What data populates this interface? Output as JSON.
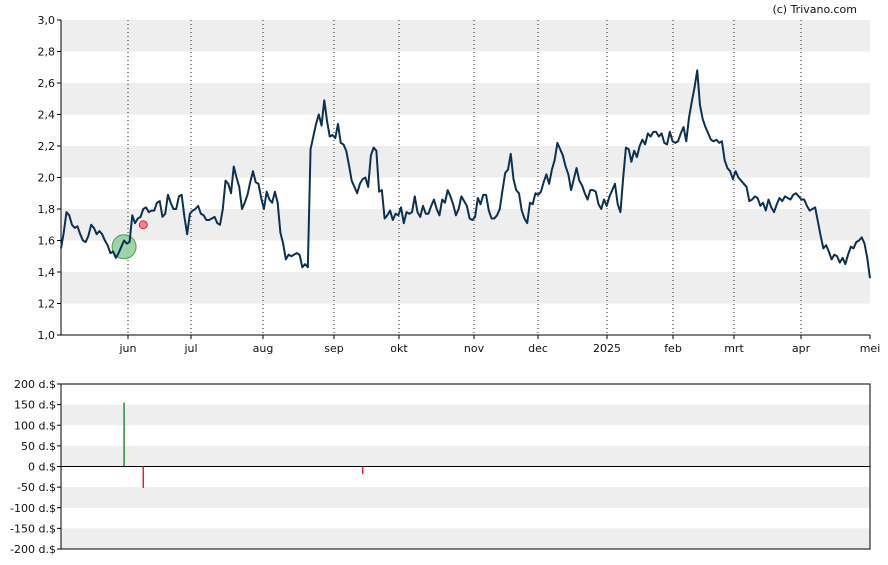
{
  "credit": "(c) Trivano.com",
  "colors": {
    "price_line": "#0d3050",
    "band": "#eeeeee",
    "axis": "#000000",
    "buy": "#2e8b3a",
    "sell": "#e0203a",
    "buy_marker_fill": "#8fcc99",
    "sell_marker_fill": "#f2858f"
  },
  "chart_data": [
    {
      "type": "line",
      "ylim": [
        1.0,
        3.0
      ],
      "y_ticks": [
        "1,0",
        "1,2",
        "1,4",
        "1,6",
        "1,8",
        "2,0",
        "2,2",
        "2,4",
        "2,6",
        "2,8",
        "3,0"
      ],
      "x_tick_labels": [
        "jun",
        "jul",
        "aug",
        "sep",
        "okt",
        "nov",
        "dec",
        "2025",
        "feb",
        "mrt",
        "apr",
        "mei"
      ],
      "grid": "alternating horizontal bands, dotted vertical lines at month starts",
      "series": [
        {
          "values": [
            1.55,
            1.65,
            1.78,
            1.76,
            1.7,
            1.68,
            1.69,
            1.64,
            1.6,
            1.59,
            1.63,
            1.7,
            1.68,
            1.64,
            1.66,
            1.64,
            1.6,
            1.57,
            1.52,
            1.53,
            1.49,
            1.52,
            1.56,
            1.6,
            1.58,
            1.59,
            1.76,
            1.71,
            1.74,
            1.75,
            1.8,
            1.81,
            1.78,
            1.79,
            1.79,
            1.84,
            1.85,
            1.75,
            1.77,
            1.89,
            1.84,
            1.8,
            1.8,
            1.88,
            1.89,
            1.75,
            1.64,
            1.77,
            1.79,
            1.8,
            1.82,
            1.77,
            1.76,
            1.73,
            1.73,
            1.74,
            1.75,
            1.71,
            1.7,
            1.8,
            1.98,
            1.96,
            1.9,
            2.07,
            2.0,
            1.94,
            1.8,
            1.84,
            1.89,
            1.97,
            2.04,
            1.97,
            1.96,
            1.87,
            1.8,
            1.91,
            1.86,
            1.84,
            1.91,
            1.84,
            1.65,
            1.58,
            1.48,
            1.51,
            1.5,
            1.51,
            1.52,
            1.51,
            1.43,
            1.45,
            1.43,
            2.18,
            2.26,
            2.34,
            2.4,
            2.33,
            2.49,
            2.36,
            2.26,
            2.27,
            2.25,
            2.34,
            2.22,
            2.21,
            2.17,
            2.08,
            1.98,
            1.94,
            1.9,
            1.96,
            1.99,
            2.0,
            1.94,
            2.14,
            2.19,
            2.17,
            1.91,
            1.92,
            1.74,
            1.76,
            1.79,
            1.73,
            1.77,
            1.76,
            1.81,
            1.71,
            1.78,
            1.77,
            1.78,
            1.88,
            1.78,
            1.75,
            1.82,
            1.77,
            1.77,
            1.82,
            1.86,
            1.8,
            1.76,
            1.86,
            1.84,
            1.92,
            1.88,
            1.83,
            1.76,
            1.8,
            1.88,
            1.85,
            1.82,
            1.74,
            1.73,
            1.75,
            1.87,
            1.83,
            1.89,
            1.89,
            1.79,
            1.74,
            1.74,
            1.76,
            1.8,
            1.92,
            2.03,
            2.05,
            2.15,
            1.99,
            1.92,
            1.9,
            1.79,
            1.74,
            1.71,
            1.84,
            1.83,
            1.9,
            1.89,
            1.91,
            1.97,
            2.02,
            1.96,
            2.05,
            2.11,
            2.22,
            2.18,
            2.14,
            2.07,
            2.02,
            1.92,
            1.99,
            2.06,
            1.98,
            1.95,
            1.9,
            1.86,
            1.92,
            1.92,
            1.91,
            1.83,
            1.8,
            1.86,
            1.82,
            1.88,
            1.92,
            1.96,
            1.83,
            1.78,
            2.0,
            2.19,
            2.18,
            2.1,
            2.17,
            2.13,
            2.2,
            2.24,
            2.21,
            2.28,
            2.26,
            2.29,
            2.29,
            2.26,
            2.28,
            2.22,
            2.21,
            2.29,
            2.23,
            2.22,
            2.23,
            2.28,
            2.32,
            2.23,
            2.38,
            2.48,
            2.57,
            2.68,
            2.46,
            2.37,
            2.32,
            2.28,
            2.24,
            2.23,
            2.24,
            2.22,
            2.23,
            2.11,
            2.06,
            2.04,
            1.99,
            2.04,
            2.0,
            1.98,
            1.96,
            1.94,
            1.85,
            1.86,
            1.88,
            1.87,
            1.82,
            1.84,
            1.79,
            1.86,
            1.81,
            1.78,
            1.83,
            1.87,
            1.85,
            1.88,
            1.87,
            1.86,
            1.89,
            1.9,
            1.88,
            1.86,
            1.86,
            1.82,
            1.79,
            1.8,
            1.81,
            1.72,
            1.63,
            1.55,
            1.57,
            1.53,
            1.48,
            1.51,
            1.5,
            1.46,
            1.49,
            1.45,
            1.51,
            1.56,
            1.55,
            1.59,
            1.6,
            1.62,
            1.58,
            1.49,
            1.36
          ]
        }
      ],
      "annotations": [
        {
          "kind": "buy-marker",
          "x_index": 23,
          "y": 1.56
        },
        {
          "kind": "sell-marker",
          "x_index": 30,
          "y": 1.7
        }
      ]
    },
    {
      "type": "bar",
      "ylim": [
        -200,
        200
      ],
      "y_ticks": [
        "200 d.$",
        "150 d.$",
        "100 d.$",
        "50 d.$",
        "0 d.$",
        "-50 d.$",
        "-100 d.$",
        "-150 d.$",
        "-200 d.$"
      ],
      "grid": "alternating horizontal bands",
      "series": [
        {
          "points": [
            {
              "x_index": 23,
              "value": 155,
              "kind": "buy"
            },
            {
              "x_index": 30,
              "value": -52,
              "kind": "sell"
            },
            {
              "x_index": 110,
              "value": -18,
              "kind": "sell"
            }
          ]
        }
      ]
    }
  ]
}
